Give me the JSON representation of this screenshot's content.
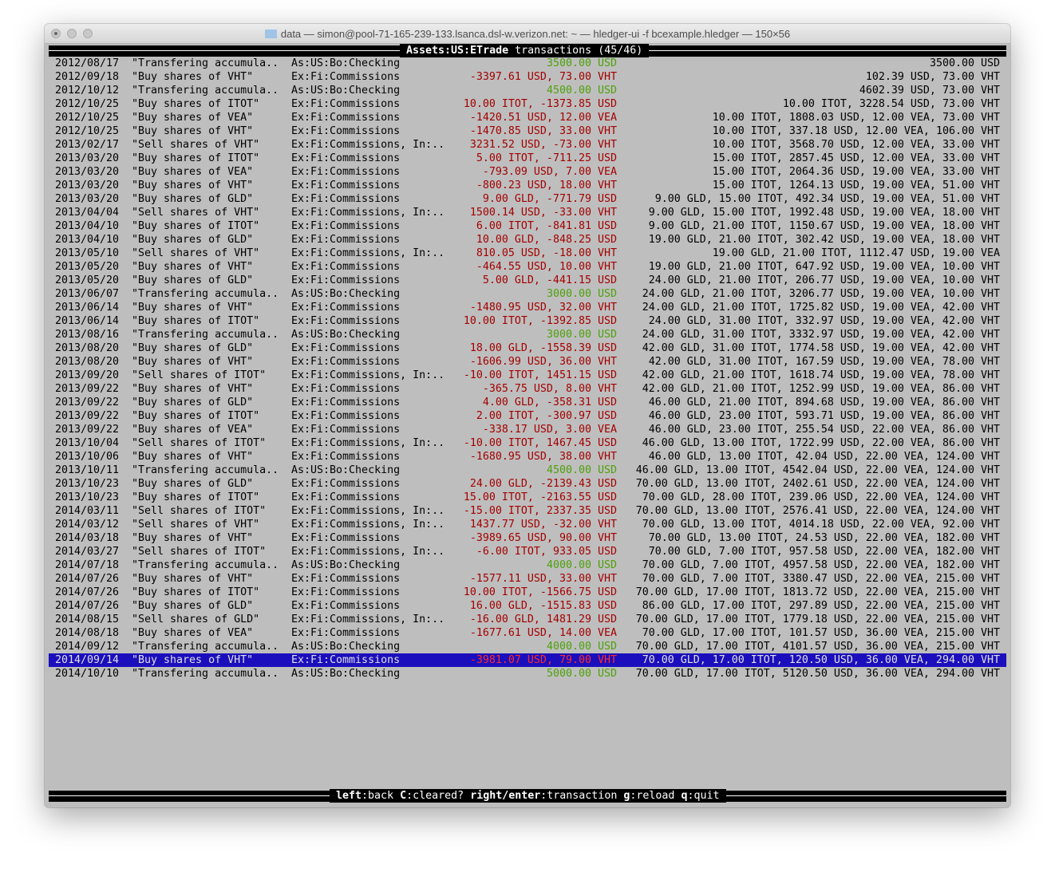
{
  "window": {
    "title": "data — simon@pool-71-165-239-133.lsanca.dsl-w.verizon.net: ~ — hledger-ui -f bcexample.hledger — 150×56"
  },
  "header": {
    "account": "Assets:US:ETrade",
    "label": "transactions",
    "position": "(45/46)"
  },
  "colors": {
    "background": "#bebebe",
    "negative": "#a40000",
    "positive": "#4ea10a",
    "selection": "#1b0fbd"
  },
  "selected_index": 44,
  "rows": [
    [
      "2012/08/17",
      "\"Transfering accumula..",
      "As:US:Bo:Checking",
      "3500.00 USD",
      "3500.00 USD",
      "g"
    ],
    [
      "2012/09/18",
      "\"Buy shares of VHT\"",
      "Ex:Fi:Commissions",
      "-3397.61 USD, 73.00 VHT",
      "102.39 USD, 73.00 VHT",
      "r"
    ],
    [
      "2012/10/12",
      "\"Transfering accumula..",
      "As:US:Bo:Checking",
      "4500.00 USD",
      "4602.39 USD, 73.00 VHT",
      "g"
    ],
    [
      "2012/10/25",
      "\"Buy shares of ITOT\"",
      "Ex:Fi:Commissions",
      "10.00 ITOT, -1373.85 USD",
      "10.00 ITOT, 3228.54 USD, 73.00 VHT",
      "r"
    ],
    [
      "2012/10/25",
      "\"Buy shares of VEA\"",
      "Ex:Fi:Commissions",
      "-1420.51 USD, 12.00 VEA",
      "10.00 ITOT, 1808.03 USD, 12.00 VEA, 73.00 VHT",
      "r"
    ],
    [
      "2012/10/25",
      "\"Buy shares of VHT\"",
      "Ex:Fi:Commissions",
      "-1470.85 USD, 33.00 VHT",
      "10.00 ITOT, 337.18 USD, 12.00 VEA, 106.00 VHT",
      "r"
    ],
    [
      "2013/02/17",
      "\"Sell shares of VHT\"",
      "Ex:Fi:Commissions, In:..",
      "3231.52 USD, -73.00 VHT",
      "10.00 ITOT, 3568.70 USD, 12.00 VEA, 33.00 VHT",
      "r"
    ],
    [
      "2013/03/20",
      "\"Buy shares of ITOT\"",
      "Ex:Fi:Commissions",
      "5.00 ITOT, -711.25 USD",
      "15.00 ITOT, 2857.45 USD, 12.00 VEA, 33.00 VHT",
      "r"
    ],
    [
      "2013/03/20",
      "\"Buy shares of VEA\"",
      "Ex:Fi:Commissions",
      "-793.09 USD, 7.00 VEA",
      "15.00 ITOT, 2064.36 USD, 19.00 VEA, 33.00 VHT",
      "r"
    ],
    [
      "2013/03/20",
      "\"Buy shares of VHT\"",
      "Ex:Fi:Commissions",
      "-800.23 USD, 18.00 VHT",
      "15.00 ITOT, 1264.13 USD, 19.00 VEA, 51.00 VHT",
      "r"
    ],
    [
      "2013/03/20",
      "\"Buy shares of GLD\"",
      "Ex:Fi:Commissions",
      "9.00 GLD, -771.79 USD",
      "9.00 GLD, 15.00 ITOT, 492.34 USD, 19.00 VEA, 51.00 VHT",
      "r"
    ],
    [
      "2013/04/04",
      "\"Sell shares of VHT\"",
      "Ex:Fi:Commissions, In:..",
      "1500.14 USD, -33.00 VHT",
      "9.00 GLD, 15.00 ITOT, 1992.48 USD, 19.00 VEA, 18.00 VHT",
      "r"
    ],
    [
      "2013/04/10",
      "\"Buy shares of ITOT\"",
      "Ex:Fi:Commissions",
      "6.00 ITOT, -841.81 USD",
      "9.00 GLD, 21.00 ITOT, 1150.67 USD, 19.00 VEA, 18.00 VHT",
      "r"
    ],
    [
      "2013/04/10",
      "\"Buy shares of GLD\"",
      "Ex:Fi:Commissions",
      "10.00 GLD, -848.25 USD",
      "19.00 GLD, 21.00 ITOT, 302.42 USD, 19.00 VEA, 18.00 VHT",
      "r"
    ],
    [
      "2013/05/10",
      "\"Sell shares of VHT\"",
      "Ex:Fi:Commissions, In:..",
      "810.05 USD, -18.00 VHT",
      "19.00 GLD, 21.00 ITOT, 1112.47 USD, 19.00 VEA",
      "r"
    ],
    [
      "2013/05/20",
      "\"Buy shares of VHT\"",
      "Ex:Fi:Commissions",
      "-464.55 USD, 10.00 VHT",
      "19.00 GLD, 21.00 ITOT, 647.92 USD, 19.00 VEA, 10.00 VHT",
      "r"
    ],
    [
      "2013/05/20",
      "\"Buy shares of GLD\"",
      "Ex:Fi:Commissions",
      "5.00 GLD, -441.15 USD",
      "24.00 GLD, 21.00 ITOT, 206.77 USD, 19.00 VEA, 10.00 VHT",
      "r"
    ],
    [
      "2013/06/07",
      "\"Transfering accumula..",
      "As:US:Bo:Checking",
      "3000.00 USD",
      "24.00 GLD, 21.00 ITOT, 3206.77 USD, 19.00 VEA, 10.00 VHT",
      "g"
    ],
    [
      "2013/06/14",
      "\"Buy shares of VHT\"",
      "Ex:Fi:Commissions",
      "-1480.95 USD, 32.00 VHT",
      "24.00 GLD, 21.00 ITOT, 1725.82 USD, 19.00 VEA, 42.00 VHT",
      "r"
    ],
    [
      "2013/06/14",
      "\"Buy shares of ITOT\"",
      "Ex:Fi:Commissions",
      "10.00 ITOT, -1392.85 USD",
      "24.00 GLD, 31.00 ITOT, 332.97 USD, 19.00 VEA, 42.00 VHT",
      "r"
    ],
    [
      "2013/08/16",
      "\"Transfering accumula..",
      "As:US:Bo:Checking",
      "3000.00 USD",
      "24.00 GLD, 31.00 ITOT, 3332.97 USD, 19.00 VEA, 42.00 VHT",
      "g"
    ],
    [
      "2013/08/20",
      "\"Buy shares of GLD\"",
      "Ex:Fi:Commissions",
      "18.00 GLD, -1558.39 USD",
      "42.00 GLD, 31.00 ITOT, 1774.58 USD, 19.00 VEA, 42.00 VHT",
      "r"
    ],
    [
      "2013/08/20",
      "\"Buy shares of VHT\"",
      "Ex:Fi:Commissions",
      "-1606.99 USD, 36.00 VHT",
      "42.00 GLD, 31.00 ITOT, 167.59 USD, 19.00 VEA, 78.00 VHT",
      "r"
    ],
    [
      "2013/09/20",
      "\"Sell shares of ITOT\"",
      "Ex:Fi:Commissions, In:..",
      "-10.00 ITOT, 1451.15 USD",
      "42.00 GLD, 21.00 ITOT, 1618.74 USD, 19.00 VEA, 78.00 VHT",
      "r"
    ],
    [
      "2013/09/22",
      "\"Buy shares of VHT\"",
      "Ex:Fi:Commissions",
      "-365.75 USD, 8.00 VHT",
      "42.00 GLD, 21.00 ITOT, 1252.99 USD, 19.00 VEA, 86.00 VHT",
      "r"
    ],
    [
      "2013/09/22",
      "\"Buy shares of GLD\"",
      "Ex:Fi:Commissions",
      "4.00 GLD, -358.31 USD",
      "46.00 GLD, 21.00 ITOT, 894.68 USD, 19.00 VEA, 86.00 VHT",
      "r"
    ],
    [
      "2013/09/22",
      "\"Buy shares of ITOT\"",
      "Ex:Fi:Commissions",
      "2.00 ITOT, -300.97 USD",
      "46.00 GLD, 23.00 ITOT, 593.71 USD, 19.00 VEA, 86.00 VHT",
      "r"
    ],
    [
      "2013/09/22",
      "\"Buy shares of VEA\"",
      "Ex:Fi:Commissions",
      "-338.17 USD, 3.00 VEA",
      "46.00 GLD, 23.00 ITOT, 255.54 USD, 22.00 VEA, 86.00 VHT",
      "r"
    ],
    [
      "2013/10/04",
      "\"Sell shares of ITOT\"",
      "Ex:Fi:Commissions, In:..",
      "-10.00 ITOT, 1467.45 USD",
      "46.00 GLD, 13.00 ITOT, 1722.99 USD, 22.00 VEA, 86.00 VHT",
      "r"
    ],
    [
      "2013/10/06",
      "\"Buy shares of VHT\"",
      "Ex:Fi:Commissions",
      "-1680.95 USD, 38.00 VHT",
      "46.00 GLD, 13.00 ITOT, 42.04 USD, 22.00 VEA, 124.00 VHT",
      "r"
    ],
    [
      "2013/10/11",
      "\"Transfering accumula..",
      "As:US:Bo:Checking",
      "4500.00 USD",
      "46.00 GLD, 13.00 ITOT, 4542.04 USD, 22.00 VEA, 124.00 VHT",
      "g"
    ],
    [
      "2013/10/23",
      "\"Buy shares of GLD\"",
      "Ex:Fi:Commissions",
      "24.00 GLD, -2139.43 USD",
      "70.00 GLD, 13.00 ITOT, 2402.61 USD, 22.00 VEA, 124.00 VHT",
      "r"
    ],
    [
      "2013/10/23",
      "\"Buy shares of ITOT\"",
      "Ex:Fi:Commissions",
      "15.00 ITOT, -2163.55 USD",
      "70.00 GLD, 28.00 ITOT, 239.06 USD, 22.00 VEA, 124.00 VHT",
      "r"
    ],
    [
      "2014/03/11",
      "\"Sell shares of ITOT\"",
      "Ex:Fi:Commissions, In:..",
      "-15.00 ITOT, 2337.35 USD",
      "70.00 GLD, 13.00 ITOT, 2576.41 USD, 22.00 VEA, 124.00 VHT",
      "r"
    ],
    [
      "2014/03/12",
      "\"Sell shares of VHT\"",
      "Ex:Fi:Commissions, In:..",
      "1437.77 USD, -32.00 VHT",
      "70.00 GLD, 13.00 ITOT, 4014.18 USD, 22.00 VEA, 92.00 VHT",
      "r"
    ],
    [
      "2014/03/18",
      "\"Buy shares of VHT\"",
      "Ex:Fi:Commissions",
      "-3989.65 USD, 90.00 VHT",
      "70.00 GLD, 13.00 ITOT, 24.53 USD, 22.00 VEA, 182.00 VHT",
      "r"
    ],
    [
      "2014/03/27",
      "\"Sell shares of ITOT\"",
      "Ex:Fi:Commissions, In:..",
      "-6.00 ITOT, 933.05 USD",
      "70.00 GLD, 7.00 ITOT, 957.58 USD, 22.00 VEA, 182.00 VHT",
      "r"
    ],
    [
      "2014/07/18",
      "\"Transfering accumula..",
      "As:US:Bo:Checking",
      "4000.00 USD",
      "70.00 GLD, 7.00 ITOT, 4957.58 USD, 22.00 VEA, 182.00 VHT",
      "g"
    ],
    [
      "2014/07/26",
      "\"Buy shares of VHT\"",
      "Ex:Fi:Commissions",
      "-1577.11 USD, 33.00 VHT",
      "70.00 GLD, 7.00 ITOT, 3380.47 USD, 22.00 VEA, 215.00 VHT",
      "r"
    ],
    [
      "2014/07/26",
      "\"Buy shares of ITOT\"",
      "Ex:Fi:Commissions",
      "10.00 ITOT, -1566.75 USD",
      "70.00 GLD, 17.00 ITOT, 1813.72 USD, 22.00 VEA, 215.00 VHT",
      "r"
    ],
    [
      "2014/07/26",
      "\"Buy shares of GLD\"",
      "Ex:Fi:Commissions",
      "16.00 GLD, -1515.83 USD",
      "86.00 GLD, 17.00 ITOT, 297.89 USD, 22.00 VEA, 215.00 VHT",
      "r"
    ],
    [
      "2014/08/15",
      "\"Sell shares of GLD\"",
      "Ex:Fi:Commissions, In:..",
      "-16.00 GLD, 1481.29 USD",
      "70.00 GLD, 17.00 ITOT, 1779.18 USD, 22.00 VEA, 215.00 VHT",
      "r"
    ],
    [
      "2014/08/18",
      "\"Buy shares of VEA\"",
      "Ex:Fi:Commissions",
      "-1677.61 USD, 14.00 VEA",
      "70.00 GLD, 17.00 ITOT, 101.57 USD, 36.00 VEA, 215.00 VHT",
      "r"
    ],
    [
      "2014/09/12",
      "\"Transfering accumula..",
      "As:US:Bo:Checking",
      "4000.00 USD",
      "70.00 GLD, 17.00 ITOT, 4101.57 USD, 36.00 VEA, 215.00 VHT",
      "g"
    ],
    [
      "2014/09/14",
      "\"Buy shares of VHT\"",
      "Ex:Fi:Commissions",
      "-3981.07 USD, 79.00 VHT",
      "70.00 GLD, 17.00 ITOT, 120.50 USD, 36.00 VEA, 294.00 VHT",
      "r"
    ],
    [
      "2014/10/10",
      "\"Transfering accumula..",
      "As:US:Bo:Checking",
      "5000.00 USD",
      "70.00 GLD, 17.00 ITOT, 5120.50 USD, 36.00 VEA, 294.00 VHT",
      "g"
    ]
  ],
  "footer": {
    "keys": [
      {
        "key": "left",
        "action": "back"
      },
      {
        "key": "C",
        "action": "cleared?"
      },
      {
        "key": "right/enter",
        "action": "transaction"
      },
      {
        "key": "g",
        "action": "reload"
      },
      {
        "key": "q",
        "action": "quit"
      }
    ]
  }
}
